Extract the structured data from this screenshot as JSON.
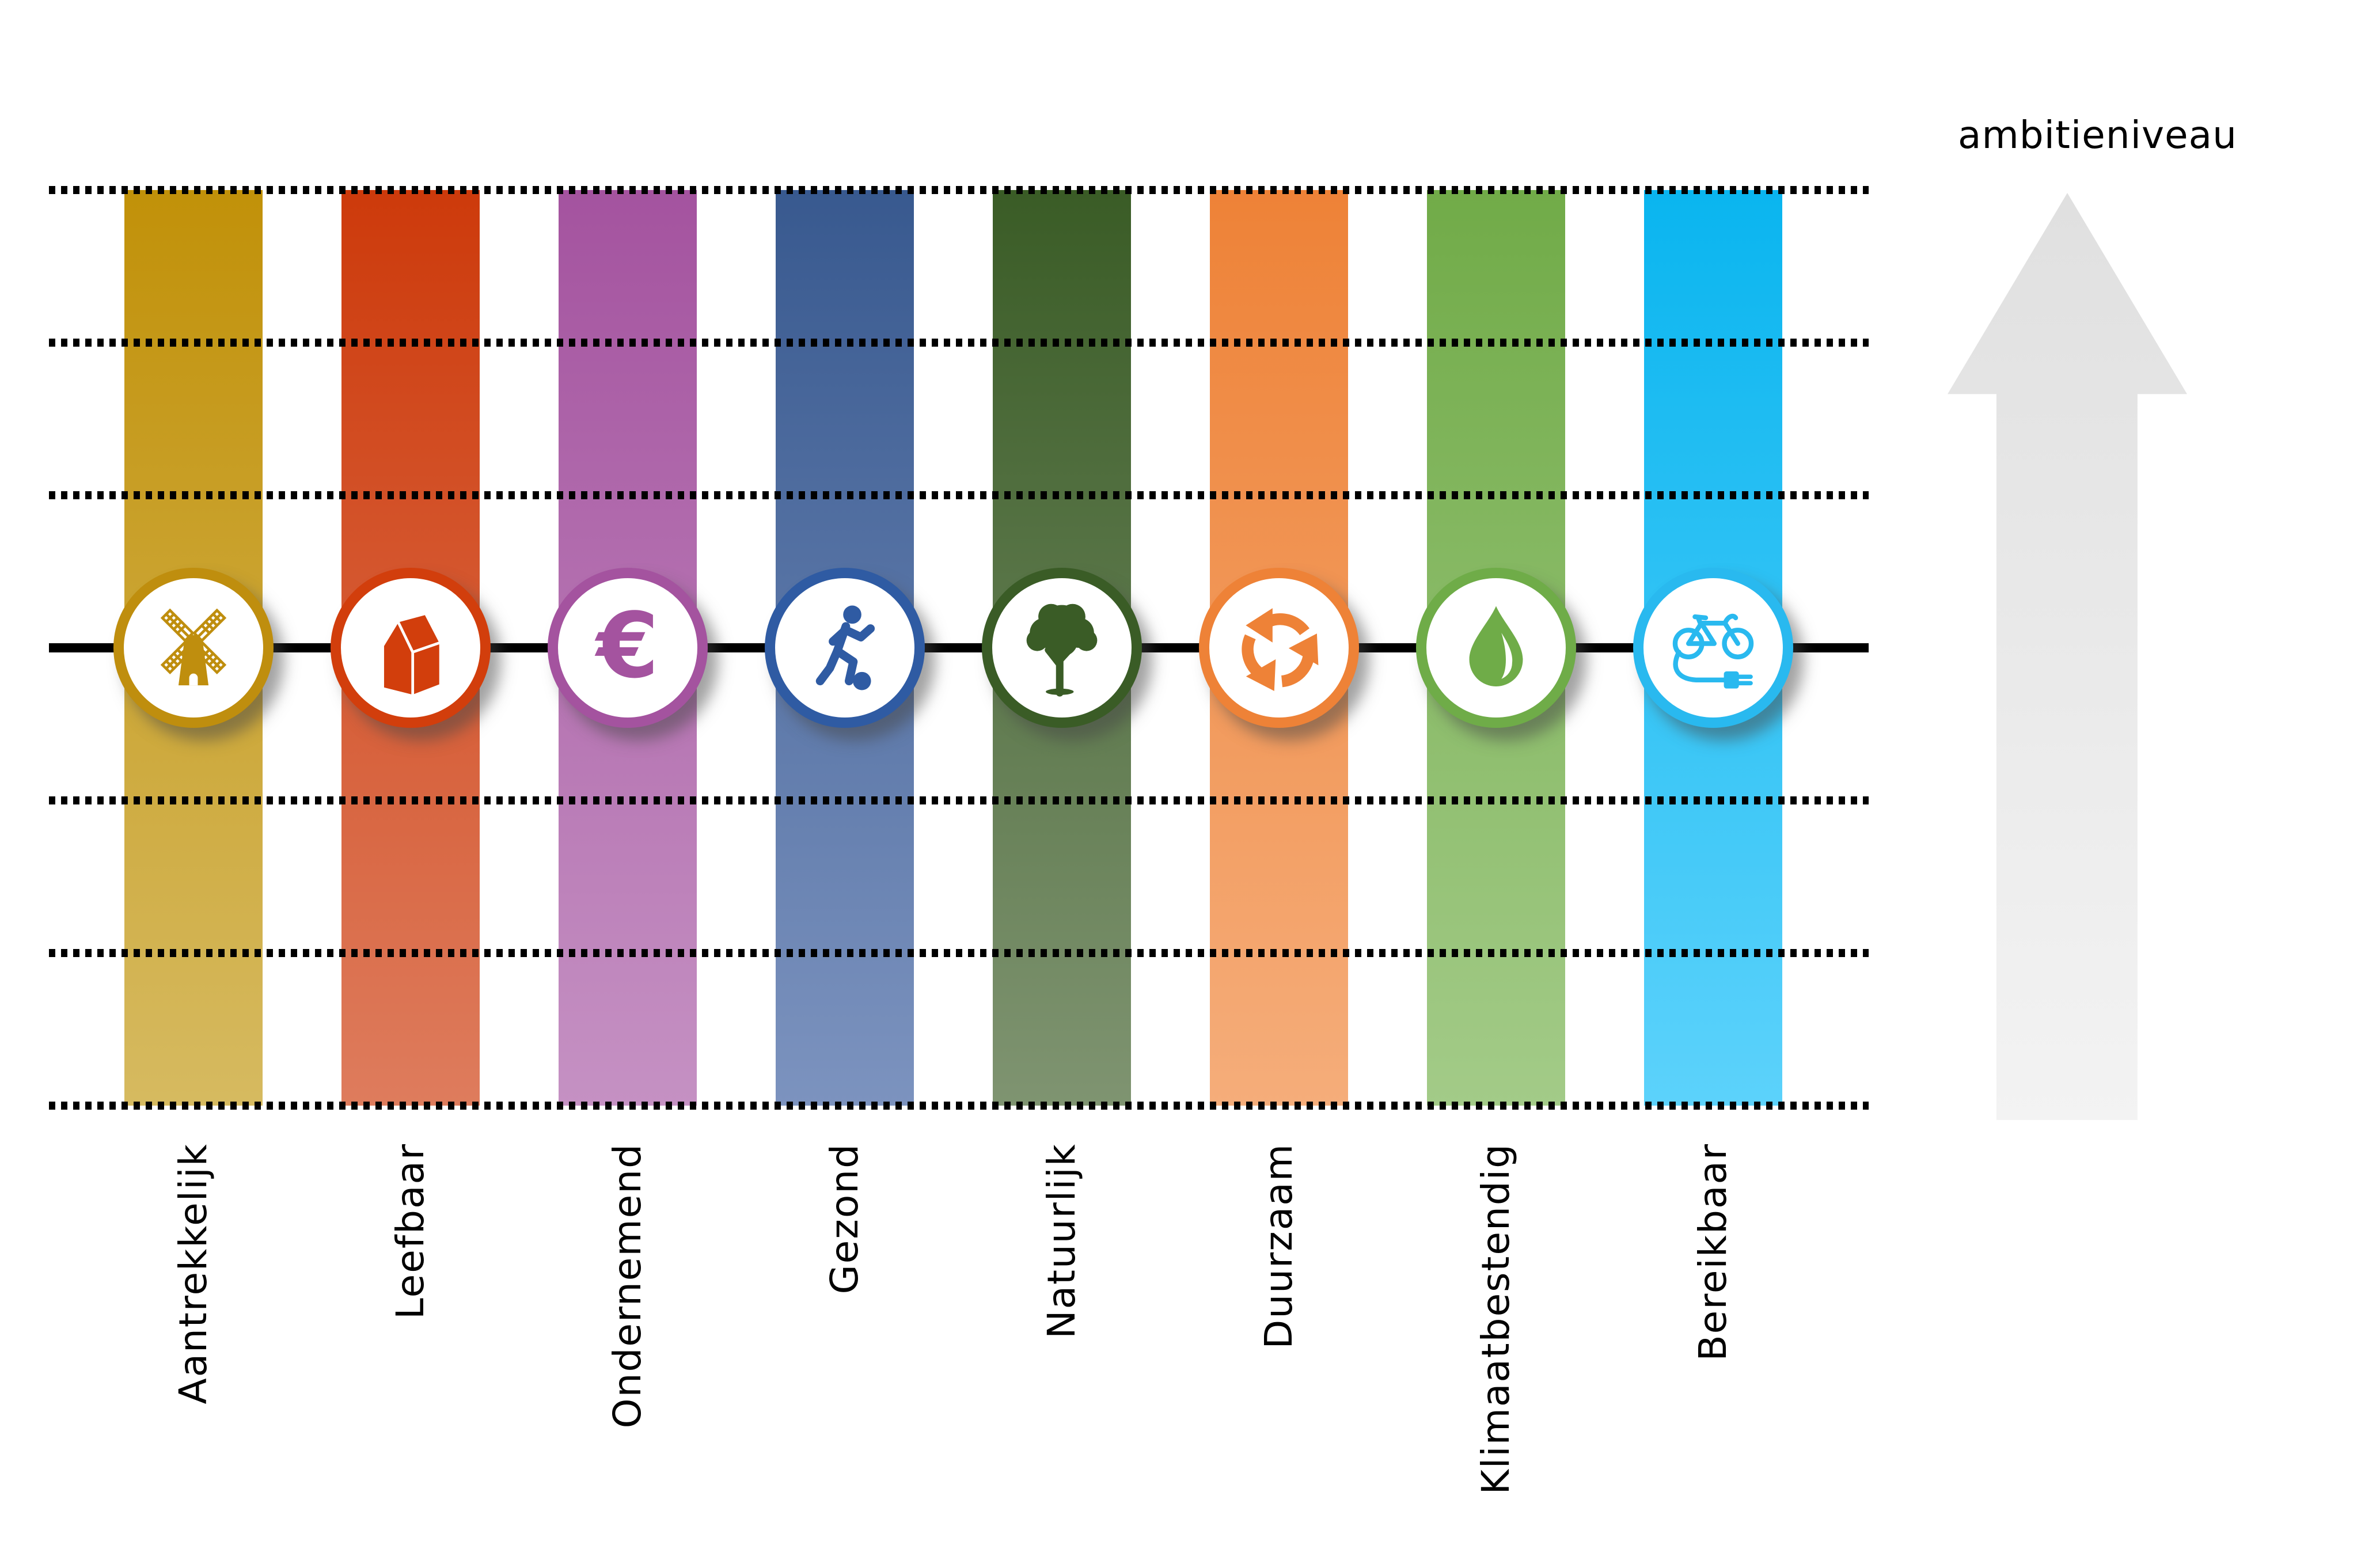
{
  "page": {
    "background": "#ffffff"
  },
  "arrow": {
    "label": "ambitieniveau",
    "color_top": "#e0e0e0",
    "color_bottom": "#f3f3f3"
  },
  "axis": {
    "gridline_count": 7,
    "baseline_index": 3,
    "gridline_color": "#000000",
    "baseline_color": "#000000",
    "label_color": "#000000"
  },
  "pillars": [
    {
      "label": "Aantrekkelijk",
      "icon": "windmill-icon",
      "color_top": "#c19109",
      "color_bottom": "#d6ba60",
      "accent": "#bf8e0e"
    },
    {
      "label": "Leefbaar",
      "icon": "house-icon",
      "color_top": "#cd3a0b",
      "color_bottom": "#de7c5d",
      "accent": "#d23e0c"
    },
    {
      "label": "Ondernemend",
      "icon": "euro-icon",
      "color_top": "#a4539f",
      "color_bottom": "#c591c3",
      "accent": "#a4539f"
    },
    {
      "label": "Gezond",
      "icon": "soccer-player-icon",
      "color_top": "#38598f",
      "color_bottom": "#7c93bf",
      "accent": "#2f5ba3"
    },
    {
      "label": "Natuurlijk",
      "icon": "tree-icon",
      "color_top": "#3a5c26",
      "color_bottom": "#7f9471",
      "accent": "#3a5c26"
    },
    {
      "label": "Duurzaam",
      "icon": "recycle-icon",
      "color_top": "#ee8237",
      "color_bottom": "#f5ad7a",
      "accent": "#ee8237"
    },
    {
      "label": "Klimaatbestendig",
      "icon": "water-drop-icon",
      "color_top": "#71ab48",
      "color_bottom": "#a3cb88",
      "accent": "#6fac48"
    },
    {
      "label": "Bereikbaar",
      "icon": "ebike-plug-icon",
      "color_top": "#0ab5ef",
      "color_bottom": "#5cd2fb",
      "accent": "#29b9ef"
    }
  ]
}
